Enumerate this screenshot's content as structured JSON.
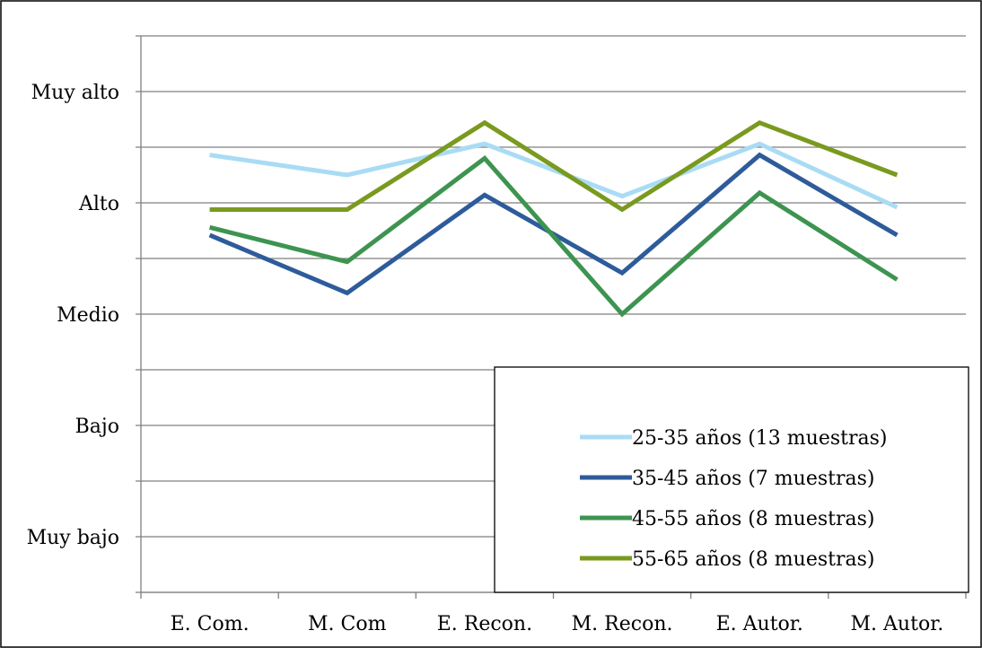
{
  "chart_data": {
    "type": "line",
    "categories": [
      "E. Com.",
      "M. Com",
      "E. Recon.",
      "M. Recon.",
      "E. Autor.",
      "M. Autor."
    ],
    "y_tick_labels": [
      "Muy bajo",
      "Bajo",
      "Medio",
      "Alto",
      "Muy alto"
    ],
    "y_tick_values": [
      1,
      2,
      3,
      4,
      5
    ],
    "ylim": [
      0.6,
      5.5
    ],
    "grid": true,
    "legend_position": "bottom-right",
    "series": [
      {
        "name": "25-35 años (13 muestras)",
        "color": "#a9dcf4",
        "values": [
          4.43,
          4.25,
          4.53,
          4.06,
          4.53,
          3.96
        ]
      },
      {
        "name": "35-45 años (7 muestras)",
        "color": "#2e5b9a",
        "values": [
          3.71,
          3.19,
          4.07,
          3.37,
          4.43,
          3.71
        ]
      },
      {
        "name": "45-55 años (8 muestras)",
        "color": "#3d9450",
        "values": [
          3.78,
          3.47,
          4.4,
          3.0,
          4.09,
          3.31
        ]
      },
      {
        "name": "55-65 años (8 muestras)",
        "color": "#7a9a1f",
        "values": [
          3.94,
          3.94,
          4.72,
          3.94,
          4.72,
          4.25
        ]
      }
    ]
  }
}
